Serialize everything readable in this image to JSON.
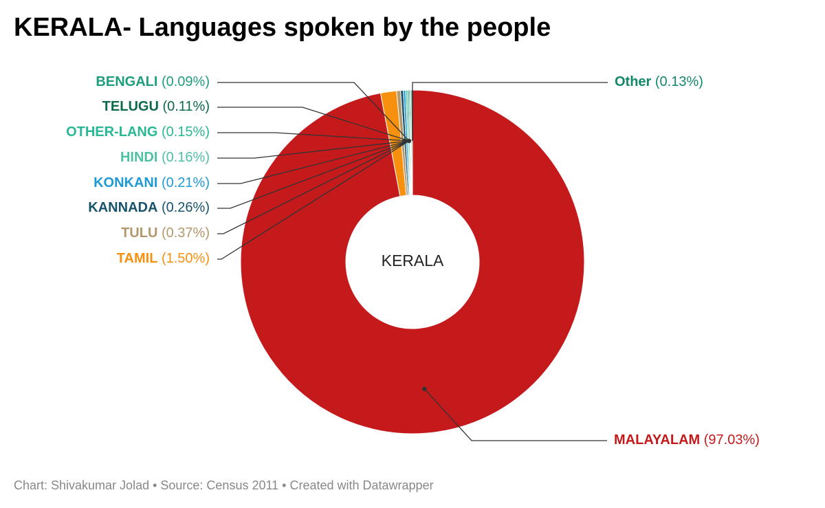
{
  "chart_data": {
    "type": "pie",
    "title": "KERALA- Languages spoken by the people",
    "center_label": "KERALA",
    "footer": "Chart: Shivakumar Jolad • Source: Census 2011 • Created with Datawrapper",
    "slices": [
      {
        "label": "MALAYALAM",
        "value": 97.03,
        "value_text": "(97.03%)",
        "color": "#c41a1c"
      },
      {
        "label": "TAMIL",
        "value": 1.5,
        "value_text": "(1.50%)",
        "color": "#f7900e"
      },
      {
        "label": "TULU",
        "value": 0.37,
        "value_text": "(0.37%)",
        "color": "#b3976a"
      },
      {
        "label": "KANNADA",
        "value": 0.26,
        "value_text": "(0.26%)",
        "color": "#17536c"
      },
      {
        "label": "KONKANI",
        "value": 0.21,
        "value_text": "(0.21%)",
        "color": "#1f9ad2"
      },
      {
        "label": "HINDI",
        "value": 0.16,
        "value_text": "(0.16%)",
        "color": "#4fbfa6"
      },
      {
        "label": "OTHER-LANG",
        "value": 0.15,
        "value_text": "(0.15%)",
        "color": "#29b894"
      },
      {
        "label": "TELUGU",
        "value": 0.11,
        "value_text": "(0.11%)",
        "color": "#0b6a4a"
      },
      {
        "label": "BENGALI",
        "value": 0.09,
        "value_text": "(0.09%)",
        "color": "#1e9e7e"
      },
      {
        "label": "Other",
        "value": 0.13,
        "value_text": "(0.13%)",
        "color": "#13876a"
      }
    ],
    "colors": {
      "value_text": "#666666",
      "leader_line": "#333333"
    }
  }
}
